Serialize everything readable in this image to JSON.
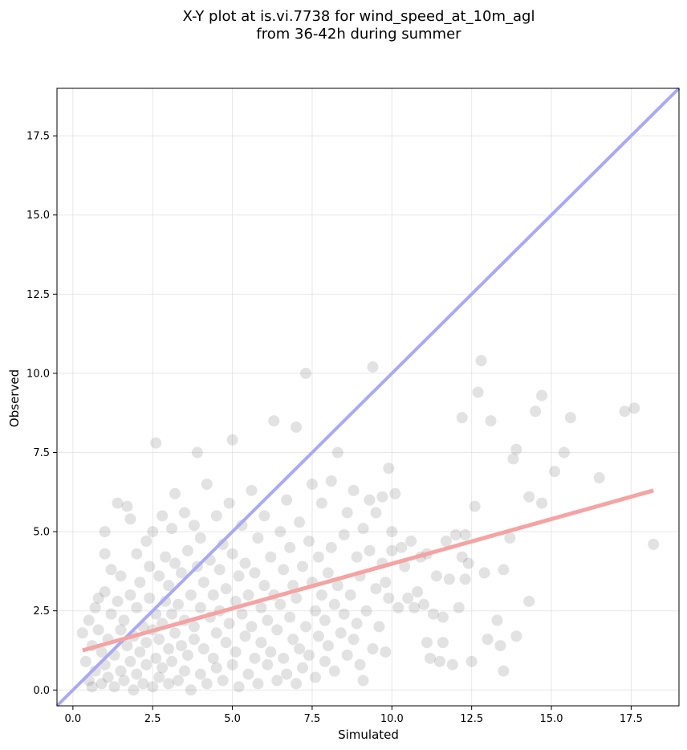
{
  "chart_data": {
    "type": "scatter",
    "title_lines": [
      "X-Y plot at is.vi.7738 for wind_speed_at_10m_agl",
      "from 36-42h during summer"
    ],
    "xlabel": "Simulated",
    "ylabel": "Observed",
    "xlim": [
      -0.5,
      19.0
    ],
    "ylim": [
      -0.5,
      19.0
    ],
    "xticks": [
      0.0,
      2.5,
      5.0,
      7.5,
      10.0,
      12.5,
      15.0,
      17.5
    ],
    "yticks": [
      0.0,
      2.5,
      5.0,
      7.5,
      10.0,
      12.5,
      15.0,
      17.5
    ],
    "xtick_labels": [
      "0.0",
      "2.5",
      "5.0",
      "7.5",
      "10.0",
      "12.5",
      "15.0",
      "17.5"
    ],
    "ytick_labels": [
      "0.0",
      "2.5",
      "5.0",
      "7.5",
      "10.0",
      "12.5",
      "15.0",
      "17.5"
    ],
    "grid": true,
    "point_color": "#555555",
    "identity_line": {
      "x": [
        -0.5,
        19.0
      ],
      "y": [
        -0.5,
        19.0
      ],
      "color": "#a9a9f5"
    },
    "fit_line": {
      "x": [
        0.3,
        18.2
      ],
      "y": [
        1.25,
        6.3
      ],
      "color": "#f5a3a3"
    },
    "series": [
      {
        "points": [
          [
            0.3,
            1.8
          ],
          [
            0.4,
            0.9
          ],
          [
            0.5,
            0.3
          ],
          [
            0.5,
            2.2
          ],
          [
            0.6,
            1.4
          ],
          [
            0.6,
            0.1
          ],
          [
            0.7,
            2.6
          ],
          [
            0.7,
            0.6
          ],
          [
            0.8,
            1.9
          ],
          [
            0.8,
            2.9
          ],
          [
            0.9,
            0.2
          ],
          [
            0.9,
            1.2
          ],
          [
            1.0,
            4.3
          ],
          [
            1.0,
            0.8
          ],
          [
            1.0,
            3.1
          ],
          [
            1.0,
            5.0
          ],
          [
            1.1,
            1.6
          ],
          [
            1.1,
            0.4
          ],
          [
            1.2,
            2.4
          ],
          [
            1.2,
            3.8
          ],
          [
            1.3,
            0.1
          ],
          [
            1.3,
            1.1
          ],
          [
            1.4,
            2.8
          ],
          [
            1.4,
            5.9
          ],
          [
            1.5,
            0.6
          ],
          [
            1.5,
            1.9
          ],
          [
            1.5,
            3.6
          ],
          [
            1.6,
            0.3
          ],
          [
            1.6,
            2.2
          ],
          [
            1.7,
            1.4
          ],
          [
            1.7,
            5.8
          ],
          [
            1.8,
            0.9
          ],
          [
            1.8,
            3.0
          ],
          [
            1.8,
            5.4
          ],
          [
            1.9,
            0.0
          ],
          [
            1.9,
            1.7
          ],
          [
            2.0,
            2.6
          ],
          [
            2.0,
            4.3
          ],
          [
            2.0,
            0.5
          ],
          [
            2.1,
            1.2
          ],
          [
            2.1,
            3.4
          ],
          [
            2.2,
            0.2
          ],
          [
            2.2,
            2.0
          ],
          [
            2.3,
            4.7
          ],
          [
            2.3,
            1.5
          ],
          [
            2.3,
            0.8
          ],
          [
            2.4,
            2.9
          ],
          [
            2.4,
            3.9
          ],
          [
            2.5,
            0.1
          ],
          [
            2.5,
            1.9
          ],
          [
            2.5,
            5.0
          ],
          [
            2.6,
            1.0
          ],
          [
            2.6,
            2.4
          ],
          [
            2.6,
            7.8
          ],
          [
            2.7,
            0.4
          ],
          [
            2.7,
            3.6
          ],
          [
            2.7,
            1.6
          ],
          [
            2.8,
            5.5
          ],
          [
            2.8,
            2.1
          ],
          [
            2.8,
            0.7
          ],
          [
            2.9,
            4.2
          ],
          [
            2.9,
            2.8
          ],
          [
            3.0,
            0.2
          ],
          [
            3.0,
            1.3
          ],
          [
            3.0,
            3.3
          ],
          [
            3.1,
            5.1
          ],
          [
            3.1,
            2.4
          ],
          [
            3.1,
            0.9
          ],
          [
            3.2,
            6.2
          ],
          [
            3.2,
            1.8
          ],
          [
            3.2,
            4.0
          ],
          [
            3.3,
            0.3
          ],
          [
            3.3,
            2.7
          ],
          [
            3.4,
            1.4
          ],
          [
            3.4,
            3.7
          ],
          [
            3.5,
            5.6
          ],
          [
            3.5,
            0.6
          ],
          [
            3.5,
            2.2
          ],
          [
            3.6,
            4.4
          ],
          [
            3.6,
            1.1
          ],
          [
            3.7,
            3.0
          ],
          [
            3.7,
            0.0
          ],
          [
            3.8,
            2.0
          ],
          [
            3.8,
            5.2
          ],
          [
            3.8,
            1.6
          ],
          [
            3.9,
            3.9
          ],
          [
            3.9,
            7.5
          ],
          [
            4.0,
            0.5
          ],
          [
            4.0,
            2.6
          ],
          [
            4.0,
            4.8
          ],
          [
            4.1,
            1.3
          ],
          [
            4.1,
            3.4
          ],
          [
            4.2,
            6.5
          ],
          [
            4.2,
            0.2
          ],
          [
            4.3,
            2.3
          ],
          [
            4.3,
            4.1
          ],
          [
            4.4,
            1.0
          ],
          [
            4.4,
            3.0
          ],
          [
            4.5,
            5.5
          ],
          [
            4.5,
            0.7
          ],
          [
            4.5,
            1.8
          ],
          [
            4.6,
            3.8
          ],
          [
            4.6,
            2.5
          ],
          [
            4.7,
            4.6
          ],
          [
            4.7,
            0.3
          ],
          [
            4.8,
            1.5
          ],
          [
            4.8,
            3.2
          ],
          [
            4.9,
            5.9
          ],
          [
            4.9,
            2.1
          ],
          [
            5.0,
            7.9
          ],
          [
            5.0,
            0.8
          ],
          [
            5.0,
            4.3
          ],
          [
            5.1,
            2.8
          ],
          [
            5.1,
            1.2
          ],
          [
            5.2,
            3.6
          ],
          [
            5.2,
            0.1
          ],
          [
            5.3,
            5.2
          ],
          [
            5.3,
            2.4
          ],
          [
            5.4,
            1.7
          ],
          [
            5.4,
            4.0
          ],
          [
            5.5,
            0.5
          ],
          [
            5.5,
            3.0
          ],
          [
            5.6,
            6.3
          ],
          [
            5.6,
            2.0
          ],
          [
            5.7,
            1.0
          ],
          [
            5.7,
            3.7
          ],
          [
            5.8,
            4.8
          ],
          [
            5.8,
            0.2
          ],
          [
            5.9,
            2.6
          ],
          [
            5.9,
            1.5
          ],
          [
            6.0,
            3.3
          ],
          [
            6.0,
            5.5
          ],
          [
            6.1,
            0.8
          ],
          [
            6.1,
            2.2
          ],
          [
            6.2,
            4.2
          ],
          [
            6.2,
            1.2
          ],
          [
            6.3,
            8.5
          ],
          [
            6.3,
            3.0
          ],
          [
            6.4,
            0.3
          ],
          [
            6.4,
            1.9
          ],
          [
            6.5,
            5.0
          ],
          [
            6.5,
            2.7
          ],
          [
            6.6,
            3.8
          ],
          [
            6.6,
            1.0
          ],
          [
            6.7,
            6.0
          ],
          [
            6.7,
            0.5
          ],
          [
            6.8,
            2.3
          ],
          [
            6.8,
            4.5
          ],
          [
            6.9,
            1.6
          ],
          [
            6.9,
            3.3
          ],
          [
            7.0,
            8.3
          ],
          [
            7.0,
            0.2
          ],
          [
            7.0,
            2.9
          ],
          [
            7.1,
            5.3
          ],
          [
            7.1,
            1.3
          ],
          [
            7.2,
            3.9
          ],
          [
            7.2,
            0.7
          ],
          [
            7.3,
            10.0
          ],
          [
            7.3,
            2.0
          ],
          [
            7.4,
            4.7
          ],
          [
            7.4,
            1.1
          ],
          [
            7.5,
            3.4
          ],
          [
            7.5,
            6.5
          ],
          [
            7.6,
            0.4
          ],
          [
            7.6,
            2.5
          ],
          [
            7.7,
            1.7
          ],
          [
            7.7,
            4.2
          ],
          [
            7.8,
            3.0
          ],
          [
            7.8,
            5.9
          ],
          [
            7.9,
            0.9
          ],
          [
            7.9,
            2.2
          ],
          [
            8.0,
            3.7
          ],
          [
            8.0,
            1.4
          ],
          [
            8.1,
            6.6
          ],
          [
            8.1,
            4.5
          ],
          [
            8.2,
            2.7
          ],
          [
            8.2,
            0.6
          ],
          [
            8.3,
            7.5
          ],
          [
            8.3,
            3.3
          ],
          [
            8.4,
            1.8
          ],
          [
            8.5,
            4.9
          ],
          [
            8.5,
            2.4
          ],
          [
            8.6,
            1.1
          ],
          [
            8.6,
            5.6
          ],
          [
            8.7,
            3.0
          ],
          [
            8.8,
            6.3
          ],
          [
            8.8,
            1.6
          ],
          [
            8.9,
            2.1
          ],
          [
            8.9,
            4.2
          ],
          [
            9.0,
            0.8
          ],
          [
            9.0,
            3.6
          ],
          [
            9.1,
            5.1
          ],
          [
            9.1,
            0.3
          ],
          [
            9.2,
            2.5
          ],
          [
            9.3,
            6.0
          ],
          [
            9.3,
            4.4
          ],
          [
            9.4,
            1.3
          ],
          [
            9.4,
            10.2
          ],
          [
            9.5,
            3.2
          ],
          [
            9.5,
            5.6
          ],
          [
            9.6,
            2.0
          ],
          [
            9.7,
            6.1
          ],
          [
            9.7,
            4.0
          ],
          [
            9.8,
            1.2
          ],
          [
            9.8,
            3.4
          ],
          [
            9.9,
            7.0
          ],
          [
            9.9,
            2.9
          ],
          [
            10.0,
            5.0
          ],
          [
            10.0,
            4.4
          ],
          [
            10.1,
            6.2
          ],
          [
            10.2,
            2.6
          ],
          [
            10.3,
            4.5
          ],
          [
            10.4,
            3.9
          ],
          [
            10.5,
            2.9
          ],
          [
            10.6,
            4.7
          ],
          [
            10.7,
            2.6
          ],
          [
            10.8,
            3.1
          ],
          [
            10.9,
            4.2
          ],
          [
            11.0,
            2.7
          ],
          [
            11.1,
            4.3
          ],
          [
            11.1,
            1.5
          ],
          [
            11.2,
            1.0
          ],
          [
            11.3,
            2.4
          ],
          [
            11.4,
            3.6
          ],
          [
            11.5,
            0.9
          ],
          [
            11.6,
            2.3
          ],
          [
            11.6,
            1.5
          ],
          [
            11.7,
            4.7
          ],
          [
            11.8,
            3.5
          ],
          [
            11.9,
            0.8
          ],
          [
            12.0,
            4.9
          ],
          [
            12.1,
            2.6
          ],
          [
            12.2,
            8.6
          ],
          [
            12.2,
            4.2
          ],
          [
            12.3,
            3.5
          ],
          [
            12.3,
            4.9
          ],
          [
            12.4,
            4.0
          ],
          [
            12.5,
            0.9
          ],
          [
            12.6,
            5.8
          ],
          [
            12.7,
            9.4
          ],
          [
            12.8,
            10.4
          ],
          [
            12.9,
            3.7
          ],
          [
            13.0,
            1.6
          ],
          [
            13.1,
            8.5
          ],
          [
            13.3,
            2.2
          ],
          [
            13.4,
            1.4
          ],
          [
            13.5,
            0.6
          ],
          [
            13.5,
            3.8
          ],
          [
            13.7,
            4.8
          ],
          [
            13.8,
            7.3
          ],
          [
            13.9,
            7.6
          ],
          [
            13.9,
            1.7
          ],
          [
            14.3,
            6.1
          ],
          [
            14.3,
            2.8
          ],
          [
            14.5,
            8.8
          ],
          [
            14.7,
            9.3
          ],
          [
            14.7,
            5.9
          ],
          [
            15.1,
            6.9
          ],
          [
            15.4,
            7.5
          ],
          [
            15.6,
            8.6
          ],
          [
            16.5,
            6.7
          ],
          [
            17.3,
            8.8
          ],
          [
            17.6,
            8.9
          ],
          [
            18.2,
            4.6
          ]
        ]
      }
    ]
  }
}
